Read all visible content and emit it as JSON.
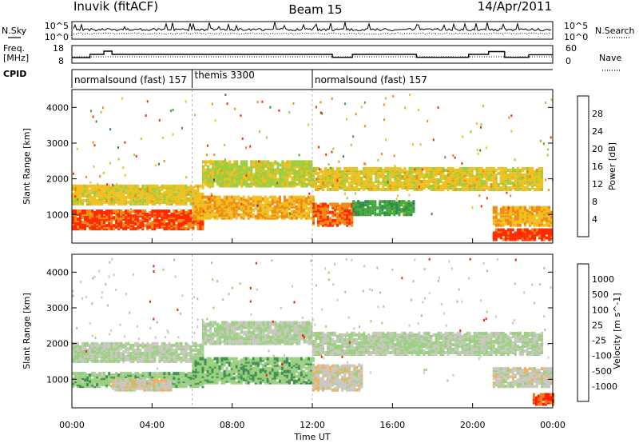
{
  "header": {
    "radar": "Inuvik (fitACF)",
    "beam": "Beam 15",
    "date": "14/Apr/2011"
  },
  "sky_panel": {
    "left_label": "N.Sky",
    "right_label": "N.Search",
    "left_ticks": [
      "10^5",
      "10^0"
    ],
    "right_ticks": [
      "10^5",
      "10^0"
    ]
  },
  "freq_panel": {
    "left_label_1": "Freq.",
    "left_label_2": "[MHz]",
    "right_label": "Nave",
    "left_ticks": [
      "18",
      "8"
    ],
    "right_ticks": [
      "60",
      "0"
    ],
    "freq_trace": [
      {
        "t": 0.0,
        "f": 11.2
      },
      {
        "t": 0.9,
        "f": 11.2
      },
      {
        "t": 0.9,
        "f": 13.0
      },
      {
        "t": 1.6,
        "f": 13.0
      },
      {
        "t": 1.6,
        "f": 14.8
      },
      {
        "t": 2.0,
        "f": 14.8
      },
      {
        "t": 2.0,
        "f": 13.0
      },
      {
        "t": 13.0,
        "f": 13.0
      },
      {
        "t": 13.0,
        "f": 11.3
      },
      {
        "t": 14.0,
        "f": 11.3
      },
      {
        "t": 14.0,
        "f": 13.0
      },
      {
        "t": 17.2,
        "f": 13.0
      },
      {
        "t": 17.2,
        "f": 11.3
      },
      {
        "t": 19.8,
        "f": 11.3
      },
      {
        "t": 19.8,
        "f": 13.0
      },
      {
        "t": 20.8,
        "f": 13.0
      },
      {
        "t": 20.8,
        "f": 14.6
      },
      {
        "t": 21.6,
        "f": 14.6
      },
      {
        "t": 21.6,
        "f": 11.3
      },
      {
        "t": 22.8,
        "f": 11.3
      },
      {
        "t": 22.8,
        "f": 12.8
      },
      {
        "t": 24.0,
        "f": 12.8
      }
    ]
  },
  "cpid_panel": {
    "label": "CPID",
    "segments": [
      {
        "name": "normalsound (fast) 157",
        "start": 0.0
      },
      {
        "name": "themis 3300",
        "start": 6.0
      },
      {
        "name": "normalsound (fast) 157",
        "start": 12.0
      }
    ]
  },
  "x_axis": {
    "title": "Time UT",
    "tick_labels": [
      "00:00",
      "04:00",
      "08:00",
      "12:00",
      "16:00",
      "20:00",
      "00:00"
    ]
  },
  "power_panel": {
    "ylabel": "Slant Range [km]",
    "y_ticks": [
      "4000",
      "3000",
      "2000",
      "1000"
    ],
    "colorbar_label": "Power [dB]",
    "colorbar_ticks": [
      "28",
      "24",
      "20",
      "16",
      "12",
      "8",
      "4"
    ]
  },
  "velocity_panel": {
    "ylabel": "Slant Range [km]",
    "y_ticks": [
      "4000",
      "3000",
      "2000",
      "1000"
    ],
    "colorbar_label": "Velocity [m s^-1]",
    "colorbar_ticks": [
      "1000",
      "500",
      "100",
      "25",
      "-25",
      "-100",
      "-500",
      "-1000"
    ]
  },
  "chart_data": [
    {
      "type": "heatmap",
      "title": "Inuvik (fitACF) Beam 15 14/Apr/2011",
      "xlabel": "Time UT",
      "ylabel": "Slant Range [km]",
      "xlim": [
        0,
        24
      ],
      "ylim": [
        200,
        4500
      ],
      "value_label": "Power [dB]",
      "color_scale": {
        "range": [
          0,
          30
        ],
        "colors": [
          "#0000ff",
          "#2a3fa8",
          "#2f8c4b",
          "#44a83a",
          "#9fcc3c",
          "#f0c020",
          "#f08a10",
          "#ff2a00"
        ]
      },
      "regions": [
        {
          "t0": 0.0,
          "t1": 6.5,
          "r0": 600,
          "r1": 1100,
          "value": 27
        },
        {
          "t0": 0.0,
          "t1": 6.5,
          "r0": 1300,
          "r1": 1800,
          "value": 20
        },
        {
          "t0": 6.0,
          "t1": 12.0,
          "r0": 900,
          "r1": 1500,
          "value": 22
        },
        {
          "t0": 6.5,
          "t1": 12.0,
          "r0": 1800,
          "r1": 2500,
          "value": 18
        },
        {
          "t0": 12.0,
          "t1": 14.0,
          "r0": 700,
          "r1": 1300,
          "value": 26
        },
        {
          "t0": 12.0,
          "t1": 23.5,
          "r0": 1700,
          "r1": 2300,
          "value": 20
        },
        {
          "t0": 14.0,
          "t1": 17.0,
          "r0": 1000,
          "r1": 1400,
          "value": 12
        },
        {
          "t0": 21.0,
          "t1": 24.0,
          "r0": 700,
          "r1": 1200,
          "value": 22
        },
        {
          "t0": 21.0,
          "t1": 24.0,
          "r0": 300,
          "r1": 600,
          "value": 28
        }
      ]
    },
    {
      "type": "heatmap",
      "title": "",
      "xlabel": "Time UT",
      "ylabel": "Slant Range [km]",
      "xlim": [
        0,
        24
      ],
      "ylim": [
        200,
        4500
      ],
      "value_label": "Velocity [m s^-1]",
      "color_scale": {
        "range": [
          -1000,
          1000
        ],
        "colors": [
          "#ff1a00",
          "#f07a10",
          "#f0b060",
          "#c8c8c0",
          "#9ad080",
          "#3f8f50",
          "#2a5fa0",
          "#1a3fc0"
        ]
      },
      "regions": [
        {
          "t0": 0.0,
          "t1": 6.5,
          "r0": 800,
          "r1": 1200,
          "value": 150
        },
        {
          "t0": 2.0,
          "t1": 5.0,
          "r0": 700,
          "r1": 1000,
          "value": -150
        },
        {
          "t0": 0.0,
          "t1": 6.5,
          "r0": 1500,
          "r1": 2000,
          "value": 0
        },
        {
          "t0": 6.0,
          "t1": 12.0,
          "r0": 900,
          "r1": 1600,
          "value": 180
        },
        {
          "t0": 6.5,
          "t1": 12.0,
          "r0": 2000,
          "r1": 2600,
          "value": 0
        },
        {
          "t0": 12.0,
          "t1": 14.5,
          "r0": 700,
          "r1": 1400,
          "value": -150
        },
        {
          "t0": 12.0,
          "t1": 23.5,
          "r0": 1700,
          "r1": 2300,
          "value": 0
        },
        {
          "t0": 21.0,
          "t1": 24.0,
          "r0": 800,
          "r1": 1300,
          "value": -120
        },
        {
          "t0": 23.0,
          "t1": 24.0,
          "r0": 300,
          "r1": 600,
          "value": -800
        }
      ]
    }
  ]
}
